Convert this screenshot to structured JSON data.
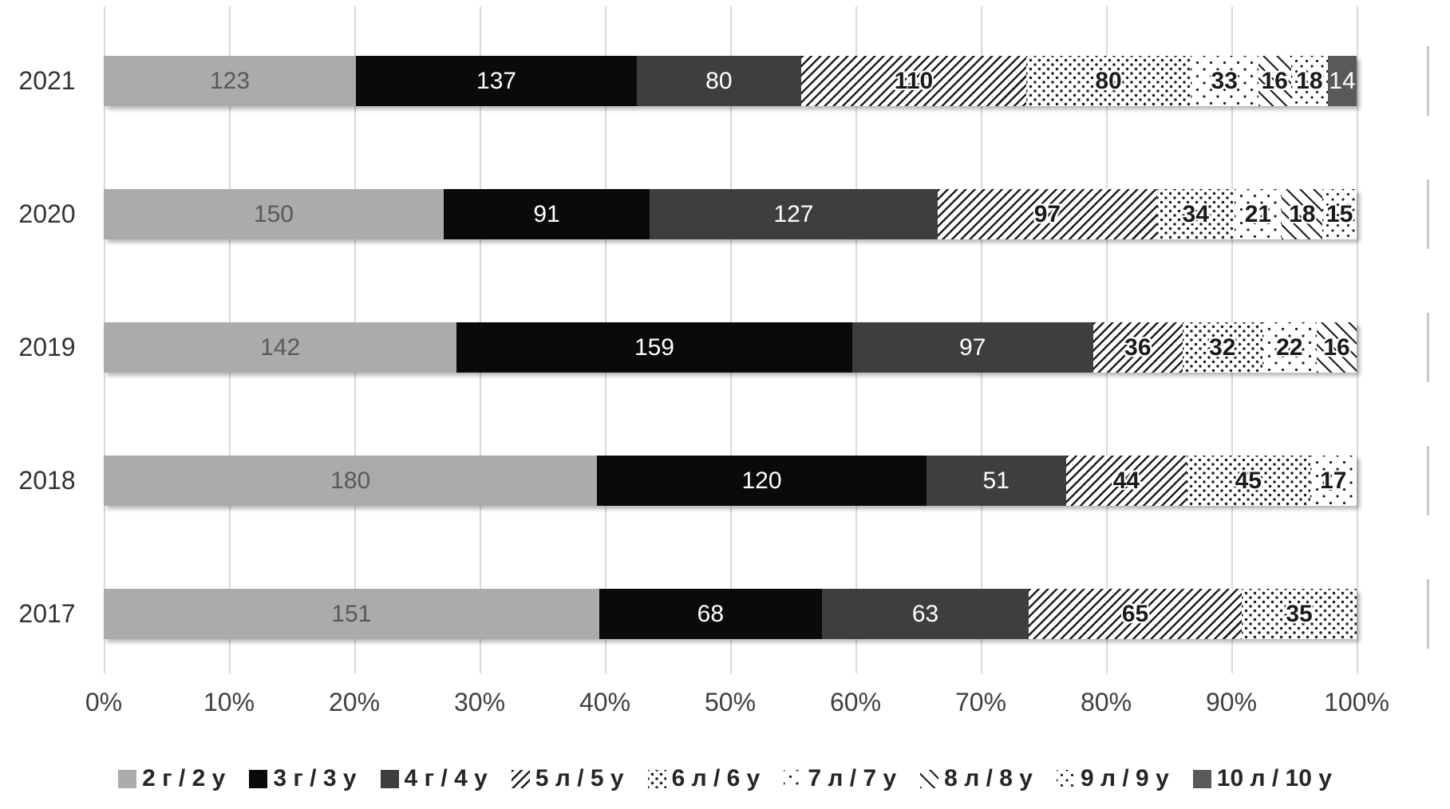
{
  "chart_data": {
    "type": "bar",
    "subtype": "stacked-100-horizontal",
    "title": "",
    "xlabel": "",
    "ylabel": "",
    "xlim": [
      0,
      100
    ],
    "grid": "vertical",
    "legend_position": "bottom",
    "x_ticks": [
      "0%",
      "10%",
      "20%",
      "30%",
      "40%",
      "50%",
      "60%",
      "70%",
      "80%",
      "90%",
      "100%"
    ],
    "categories": [
      "2021",
      "2020",
      "2019",
      "2018",
      "2017"
    ],
    "series": [
      {
        "name": "2 г / 2 y",
        "pattern": "solid",
        "color": "#ABABAB",
        "label_color": "#595959",
        "values": [
          123,
          150,
          142,
          180,
          151
        ]
      },
      {
        "name": "3 г / 3 y",
        "pattern": "solid",
        "color": "#0A0A0A",
        "label_color": "#FFFFFF",
        "values": [
          137,
          91,
          159,
          120,
          68
        ]
      },
      {
        "name": "4 г / 4 y",
        "pattern": "solid",
        "color": "#3E3E3E",
        "label_color": "#FFFFFF",
        "values": [
          80,
          127,
          97,
          51,
          63
        ]
      },
      {
        "name": "5 л / 5 y",
        "pattern": "diag-dense",
        "color": "#1F1F1F",
        "label_color": "#1A1A1A",
        "values": [
          110,
          97,
          36,
          44,
          65
        ]
      },
      {
        "name": "6 л / 6 y",
        "pattern": "dots-dense",
        "color": "#1F1F1F",
        "label_color": "#1A1A1A",
        "values": [
          80,
          34,
          32,
          45,
          35
        ]
      },
      {
        "name": "7 л / 7 y",
        "pattern": "dots-sparse",
        "color": "#1F1F1F",
        "label_color": "#1A1A1A",
        "values": [
          33,
          21,
          22,
          17,
          null
        ]
      },
      {
        "name": "8 л / 8 y",
        "pattern": "diag-sparse",
        "color": "#1F1F1F",
        "label_color": "#1A1A1A",
        "values": [
          16,
          18,
          16,
          null,
          null
        ]
      },
      {
        "name": "9 л / 9 y",
        "pattern": "dots-medium",
        "color": "#1F1F1F",
        "label_color": "#1A1A1A",
        "values": [
          18,
          15,
          null,
          null,
          null
        ]
      },
      {
        "name": "10 л / 10 y",
        "pattern": "solid",
        "color": "#595959",
        "label_color": "#FFFFFF",
        "values": [
          14,
          null,
          null,
          null,
          null
        ]
      }
    ],
    "colors": {
      "gridline": "#D9D9D9",
      "axis_text": "#404040",
      "year_text": "#333333",
      "legend_text": "#262626",
      "background": "#FFFFFF"
    }
  }
}
